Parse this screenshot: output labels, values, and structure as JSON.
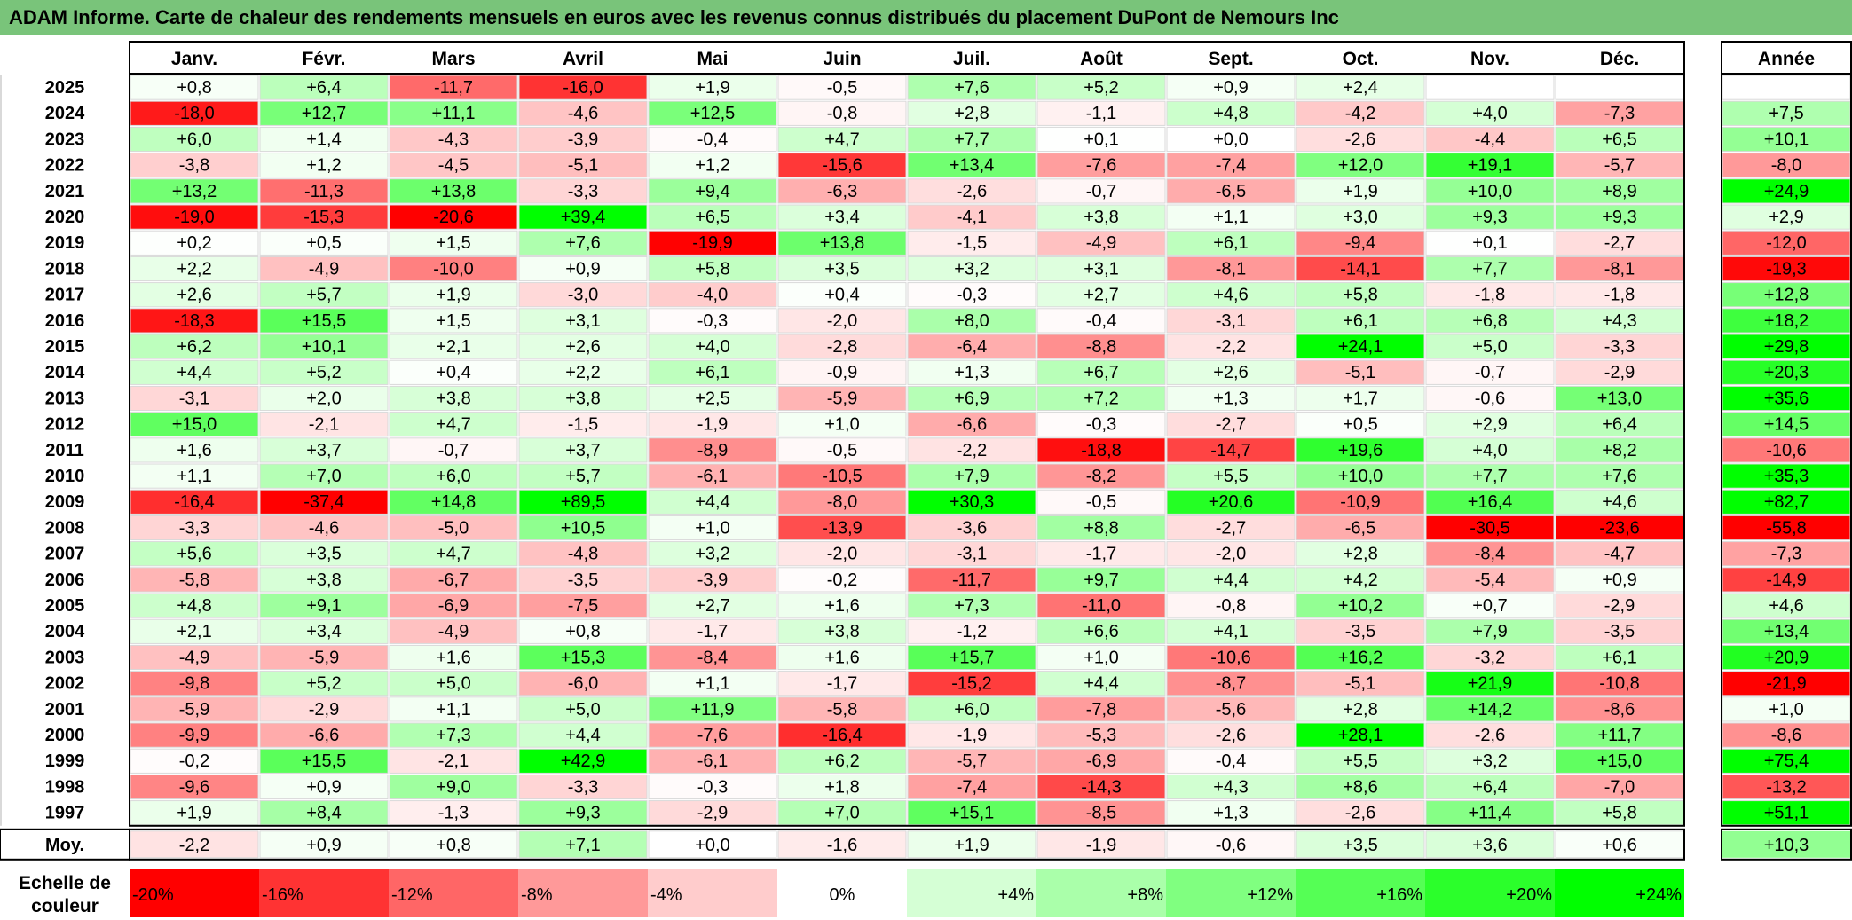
{
  "title": "ADAM Informe. Carte de chaleur des rendements mensuels en euros avec les revenus connus distribués du placement DuPont de Nemours Inc",
  "chart_data": {
    "type": "heatmap",
    "months": [
      "Janv.",
      "Févr.",
      "Mars",
      "Avril",
      "Mai",
      "Juin",
      "Juil.",
      "Août",
      "Sept.",
      "Oct.",
      "Nov.",
      "Déc."
    ],
    "year_header": "Année",
    "rows": [
      {
        "year": "2025",
        "values": [
          "+0,8",
          "+6,4",
          "-11,7",
          "-16,0",
          "+1,9",
          "-0,5",
          "+7,6",
          "+5,2",
          "+0,9",
          "+2,4",
          "",
          ""
        ],
        "annual": ""
      },
      {
        "year": "2024",
        "values": [
          "-18,0",
          "+12,7",
          "+11,1",
          "-4,6",
          "+12,5",
          "-0,8",
          "+2,8",
          "-1,1",
          "+4,8",
          "-4,2",
          "+4,0",
          "-7,3"
        ],
        "annual": "+7,5"
      },
      {
        "year": "2023",
        "values": [
          "+6,0",
          "+1,4",
          "-4,3",
          "-3,9",
          "-0,4",
          "+4,7",
          "+7,7",
          "+0,1",
          "+0,0",
          "-2,6",
          "-4,4",
          "+6,5"
        ],
        "annual": "+10,1"
      },
      {
        "year": "2022",
        "values": [
          "-3,8",
          "+1,2",
          "-4,5",
          "-5,1",
          "+1,2",
          "-15,6",
          "+13,4",
          "-7,6",
          "-7,4",
          "+12,0",
          "+19,1",
          "-5,7"
        ],
        "annual": "-8,0"
      },
      {
        "year": "2021",
        "values": [
          "+13,2",
          "-11,3",
          "+13,8",
          "-3,3",
          "+9,4",
          "-6,3",
          "-2,6",
          "-0,7",
          "-6,5",
          "+1,9",
          "+10,0",
          "+8,9"
        ],
        "annual": "+24,9"
      },
      {
        "year": "2020",
        "values": [
          "-19,0",
          "-15,3",
          "-20,6",
          "+39,4",
          "+6,5",
          "+3,4",
          "-4,1",
          "+3,8",
          "+1,1",
          "+3,0",
          "+9,3",
          "+9,3"
        ],
        "annual": "+2,9"
      },
      {
        "year": "2019",
        "values": [
          "+0,2",
          "+0,5",
          "+1,5",
          "+7,6",
          "-19,9",
          "+13,8",
          "-1,5",
          "-4,9",
          "+6,1",
          "-9,4",
          "+0,1",
          "-2,7"
        ],
        "annual": "-12,0"
      },
      {
        "year": "2018",
        "values": [
          "+2,2",
          "-4,9",
          "-10,0",
          "+0,9",
          "+5,8",
          "+3,5",
          "+3,2",
          "+3,1",
          "-8,1",
          "-14,1",
          "+7,7",
          "-8,1"
        ],
        "annual": "-19,3"
      },
      {
        "year": "2017",
        "values": [
          "+2,6",
          "+5,7",
          "+1,9",
          "-3,0",
          "-4,0",
          "+0,4",
          "-0,3",
          "+2,7",
          "+4,6",
          "+5,8",
          "-1,8",
          "-1,8"
        ],
        "annual": "+12,8"
      },
      {
        "year": "2016",
        "values": [
          "-18,3",
          "+15,5",
          "+1,5",
          "+3,1",
          "-0,3",
          "-2,0",
          "+8,0",
          "-0,4",
          "-3,1",
          "+6,1",
          "+6,8",
          "+4,3"
        ],
        "annual": "+18,2"
      },
      {
        "year": "2015",
        "values": [
          "+6,2",
          "+10,1",
          "+2,1",
          "+2,6",
          "+4,0",
          "-2,8",
          "-6,4",
          "-8,8",
          "-2,2",
          "+24,1",
          "+5,0",
          "-3,3"
        ],
        "annual": "+29,8"
      },
      {
        "year": "2014",
        "values": [
          "+4,4",
          "+5,2",
          "+0,4",
          "+2,2",
          "+6,1",
          "-0,9",
          "+1,3",
          "+6,7",
          "+2,6",
          "-5,1",
          "-0,7",
          "-2,9"
        ],
        "annual": "+20,3"
      },
      {
        "year": "2013",
        "values": [
          "-3,1",
          "+2,0",
          "+3,8",
          "+3,8",
          "+2,5",
          "-5,9",
          "+6,9",
          "+7,2",
          "+1,3",
          "+1,7",
          "-0,6",
          "+13,0"
        ],
        "annual": "+35,6"
      },
      {
        "year": "2012",
        "values": [
          "+15,0",
          "-2,1",
          "+4,7",
          "-1,5",
          "-1,9",
          "+1,0",
          "-6,6",
          "-0,3",
          "-2,7",
          "+0,5",
          "+2,9",
          "+6,4"
        ],
        "annual": "+14,5"
      },
      {
        "year": "2011",
        "values": [
          "+1,6",
          "+3,7",
          "-0,7",
          "+3,7",
          "-8,9",
          "-0,5",
          "-2,2",
          "-18,8",
          "-14,7",
          "+19,6",
          "+4,0",
          "+8,2"
        ],
        "annual": "-10,6"
      },
      {
        "year": "2010",
        "values": [
          "+1,1",
          "+7,0",
          "+6,0",
          "+5,7",
          "-6,1",
          "-10,5",
          "+7,9",
          "-8,2",
          "+5,5",
          "+10,0",
          "+7,7",
          "+7,6"
        ],
        "annual": "+35,3"
      },
      {
        "year": "2009",
        "values": [
          "-16,4",
          "-37,4",
          "+14,8",
          "+89,5",
          "+4,4",
          "-8,0",
          "+30,3",
          "-0,5",
          "+20,6",
          "-10,9",
          "+16,4",
          "+4,6"
        ],
        "annual": "+82,7"
      },
      {
        "year": "2008",
        "values": [
          "-3,3",
          "-4,6",
          "-5,0",
          "+10,5",
          "+1,0",
          "-13,9",
          "-3,6",
          "+8,8",
          "-2,7",
          "-6,5",
          "-30,5",
          "-23,6"
        ],
        "annual": "-55,8"
      },
      {
        "year": "2007",
        "values": [
          "+5,6",
          "+3,5",
          "+4,7",
          "-4,8",
          "+3,2",
          "-2,0",
          "-3,1",
          "-1,7",
          "-2,0",
          "+2,8",
          "-8,4",
          "-4,7"
        ],
        "annual": "-7,3"
      },
      {
        "year": "2006",
        "values": [
          "-5,8",
          "+3,8",
          "-6,7",
          "-3,5",
          "-3,9",
          "-0,2",
          "-11,7",
          "+9,7",
          "+4,4",
          "+4,2",
          "-5,4",
          "+0,9"
        ],
        "annual": "-14,9"
      },
      {
        "year": "2005",
        "values": [
          "+4,8",
          "+9,1",
          "-6,9",
          "-7,5",
          "+2,7",
          "+1,6",
          "+7,3",
          "-11,0",
          "-0,8",
          "+10,2",
          "+0,7",
          "-2,9"
        ],
        "annual": "+4,6"
      },
      {
        "year": "2004",
        "values": [
          "+2,1",
          "+3,4",
          "-4,9",
          "+0,8",
          "-1,7",
          "+3,8",
          "-1,2",
          "+6,6",
          "+4,1",
          "-3,5",
          "+7,9",
          "-3,5"
        ],
        "annual": "+13,4"
      },
      {
        "year": "2003",
        "values": [
          "-4,9",
          "-5,9",
          "+1,6",
          "+15,3",
          "-8,4",
          "+1,6",
          "+15,7",
          "+1,0",
          "-10,6",
          "+16,2",
          "-3,2",
          "+6,1"
        ],
        "annual": "+20,9"
      },
      {
        "year": "2002",
        "values": [
          "-9,8",
          "+5,2",
          "+5,0",
          "-6,0",
          "+1,1",
          "-1,7",
          "-15,2",
          "+4,4",
          "-8,7",
          "-5,1",
          "+21,9",
          "-10,8"
        ],
        "annual": "-21,9"
      },
      {
        "year": "2001",
        "values": [
          "-5,9",
          "-2,9",
          "+1,1",
          "+5,0",
          "+11,9",
          "-5,8",
          "+6,0",
          "-7,8",
          "-5,6",
          "+2,8",
          "+14,2",
          "-8,6"
        ],
        "annual": "+1,0"
      },
      {
        "year": "2000",
        "values": [
          "-9,9",
          "-6,6",
          "+7,3",
          "+4,4",
          "-7,6",
          "-16,4",
          "-1,9",
          "-5,3",
          "-2,6",
          "+28,1",
          "-2,6",
          "+11,7"
        ],
        "annual": "-8,6"
      },
      {
        "year": "1999",
        "values": [
          "-0,2",
          "+15,5",
          "-2,1",
          "+42,9",
          "-6,1",
          "+6,2",
          "-5,7",
          "-6,9",
          "-0,4",
          "+5,5",
          "+3,2",
          "+15,0"
        ],
        "annual": "+75,4"
      },
      {
        "year": "1998",
        "values": [
          "-9,6",
          "+0,9",
          "+9,0",
          "-3,3",
          "-0,3",
          "+1,8",
          "-7,4",
          "-14,3",
          "+4,3",
          "+8,6",
          "+6,4",
          "-7,0"
        ],
        "annual": "-13,2"
      },
      {
        "year": "1997",
        "values": [
          "+1,9",
          "+8,4",
          "-1,3",
          "+9,3",
          "-2,9",
          "+7,0",
          "+15,1",
          "-8,5",
          "+1,3",
          "-2,6",
          "+11,4",
          "+5,8"
        ],
        "annual": "+51,1"
      }
    ],
    "average": {
      "label": "Moy.",
      "values": [
        "-2,2",
        "+0,9",
        "+0,8",
        "+7,1",
        "+0,0",
        "-1,6",
        "+1,9",
        "-1,9",
        "-0,6",
        "+3,5",
        "+3,6",
        "+0,6"
      ],
      "annual": "+10,3"
    },
    "scale": {
      "label_line1": "Echelle de",
      "label_line2": "couleur",
      "stops": [
        "-20%",
        "-16%",
        "-12%",
        "-8%",
        "-4%",
        "0%",
        "+4%",
        "+8%",
        "+12%",
        "+16%",
        "+20%",
        "+24%"
      ]
    },
    "colors": {
      "negative_max": "#ff0000",
      "neutral": "#ffffff",
      "positive_max": "#00ff00",
      "title_bar": "#79c47a"
    }
  }
}
